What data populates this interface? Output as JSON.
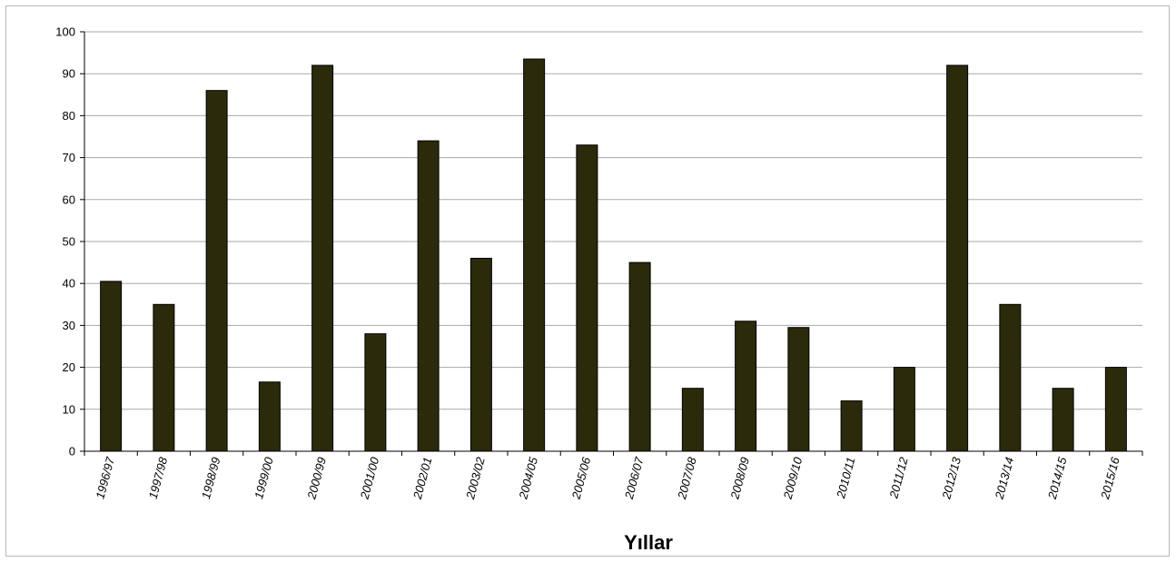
{
  "chart_data": {
    "type": "bar",
    "title": "",
    "xlabel": "Yıllar",
    "ylabel": "",
    "categories": [
      "1996/97",
      "1997/98",
      "1998/99",
      "1999/00",
      "2000/99",
      "2001/00",
      "2002/01",
      "2003/02",
      "2004/05",
      "2005/06",
      "2006/07",
      "2007/08",
      "2008/09",
      "2009/10",
      "2010/11",
      "2011/12",
      "2012/13",
      "2013/14",
      "2014/15",
      "2015/16"
    ],
    "series": [
      {
        "values": [
          40.5,
          35,
          86,
          16.5,
          92,
          28,
          74,
          46,
          93.5,
          73,
          45,
          15,
          31,
          29.5,
          12,
          20,
          92,
          35,
          15,
          20
        ]
      }
    ],
    "ylim": [
      0,
      100
    ],
    "yticks": [
      0,
      10,
      20,
      30,
      40,
      50,
      60,
      70,
      80,
      90,
      100
    ],
    "grid": true,
    "legend": "none",
    "colors": {
      "bar": "#2b2a0b",
      "bar_edge": "#000000",
      "grid": "#a8a8a8"
    }
  }
}
